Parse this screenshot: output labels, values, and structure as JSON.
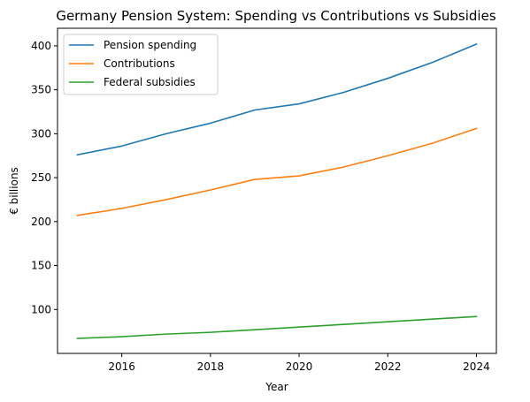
{
  "chart_data": {
    "type": "line",
    "title": "Germany Pension System: Spending vs Contributions vs Subsidies",
    "xlabel": "Year",
    "ylabel": "€ billions",
    "x": [
      2015,
      2016,
      2017,
      2018,
      2019,
      2020,
      2021,
      2022,
      2023,
      2024
    ],
    "xlim": [
      2014.55,
      2024.45
    ],
    "ylim": [
      50,
      420
    ],
    "xticks": [
      2016,
      2018,
      2020,
      2022,
      2024
    ],
    "yticks": [
      100,
      150,
      200,
      250,
      300,
      350,
      400
    ],
    "grid": false,
    "legend_position": "top-left",
    "series": [
      {
        "name": "Pension spending",
        "color": "#1f77b4",
        "values": [
          276,
          286,
          300,
          312,
          327,
          334,
          347,
          363,
          381,
          402
        ]
      },
      {
        "name": "Contributions",
        "color": "#ff7f0e",
        "values": [
          207,
          215,
          225,
          236,
          248,
          252,
          262,
          275,
          289,
          306
        ]
      },
      {
        "name": "Federal subsidies",
        "color": "#2ca02c",
        "values": [
          67,
          69,
          72,
          74,
          77,
          80,
          83,
          86,
          89,
          92
        ]
      }
    ]
  }
}
